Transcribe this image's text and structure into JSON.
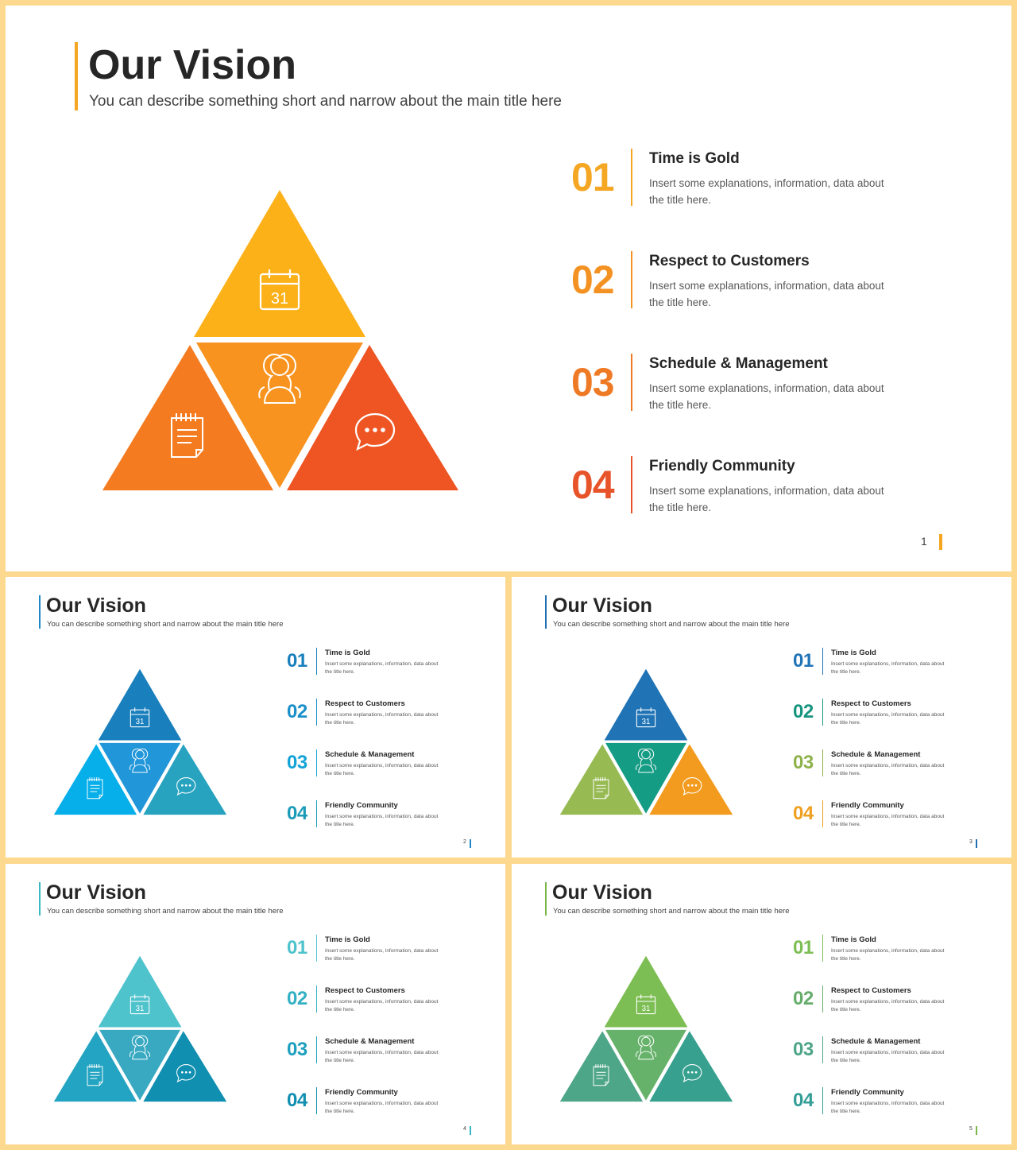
{
  "title": "Our Vision",
  "subtitle": "You can describe something short and narrow about the main title here",
  "icons": {
    "top": "calendar-icon",
    "middle": "group-icon",
    "left": "notepad-icon",
    "right": "chat-bubble-icon",
    "calendar_day": "31"
  },
  "items": [
    {
      "num": "01",
      "title": "Time is Gold",
      "desc": "Insert some explanations, information, data about the title here."
    },
    {
      "num": "02",
      "title": "Respect to Customers",
      "desc": "Insert some explanations, information, data about the title here."
    },
    {
      "num": "03",
      "title": "Schedule & Management",
      "desc": "Insert some explanations, information, data about the title here."
    },
    {
      "num": "04",
      "title": "Friendly Community",
      "desc": "Insert some explanations, information, data about the title here."
    }
  ],
  "slides": [
    {
      "page": "1",
      "accent": "#f5a623",
      "colors": {
        "top": "#fdb119",
        "middle": "#f7931e",
        "left": "#f47b20",
        "right": "#ee5522"
      },
      "num_colors": [
        "#f5a623",
        "#f39222",
        "#ef7a25",
        "#e8542a"
      ],
      "divider_colors": [
        "#f5a623",
        "#f39222",
        "#ef7a25",
        "#e8542a"
      ]
    },
    {
      "page": "2",
      "accent": "#1e88c8",
      "colors": {
        "top": "#1a7fbd",
        "middle": "#2196d9",
        "left": "#06aeea",
        "right": "#27a3c0"
      },
      "num_colors": [
        "#1a7fbd",
        "#1a8fc9",
        "#14a3d6",
        "#1b9bb8"
      ],
      "divider_colors": [
        "#1a7fbd",
        "#1a8fc9",
        "#14a3d6",
        "#1b9bb8"
      ]
    },
    {
      "page": "3",
      "accent": "#1f6fb2",
      "colors": {
        "top": "#2074b6",
        "middle": "#159c85",
        "left": "#97ba52",
        "right": "#f29b1e"
      },
      "num_colors": [
        "#2074b6",
        "#17957f",
        "#8fb24c",
        "#eea020"
      ],
      "divider_colors": [
        "#2074b6",
        "#17957f",
        "#8fb24c",
        "#eea020"
      ]
    },
    {
      "page": "4",
      "accent": "#39b7c4",
      "colors": {
        "top": "#4fc3cc",
        "middle": "#39a9c2",
        "left": "#23a4c2",
        "right": "#108fb0"
      },
      "num_colors": [
        "#4fc3cc",
        "#33b0c4",
        "#1e9fbe",
        "#108fb0"
      ],
      "divider_colors": [
        "#4fc3cc",
        "#33b0c4",
        "#1e9fbe",
        "#108fb0"
      ]
    },
    {
      "page": "5",
      "accent": "#7ab648",
      "colors": {
        "top": "#7dbe54",
        "middle": "#67b26a",
        "left": "#4ea688",
        "right": "#37a08f"
      },
      "num_colors": [
        "#7dbe54",
        "#66ad6b",
        "#4ea588",
        "#349e96"
      ],
      "divider_colors": [
        "#7dbe54",
        "#66ad6b",
        "#4ea588",
        "#349e96"
      ]
    }
  ]
}
